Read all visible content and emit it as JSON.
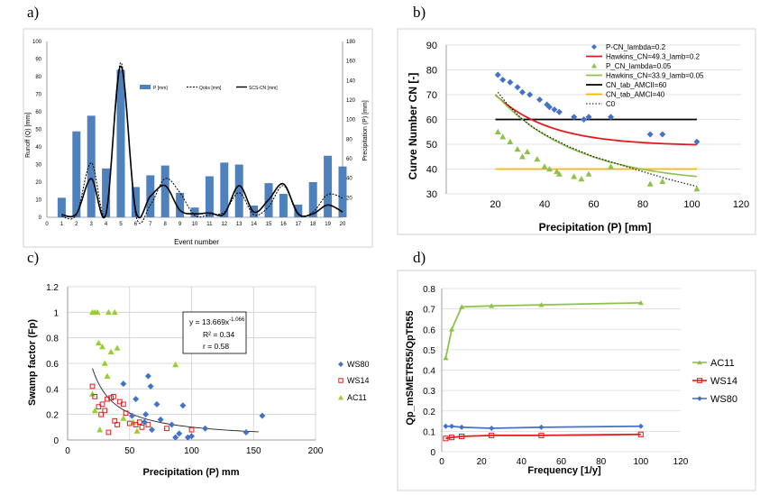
{
  "figure_labels": {
    "a": "a)",
    "b": "b)",
    "c": "c)",
    "d": "d)"
  },
  "colors": {
    "bar": "#4f81bd",
    "blue": "#4472c4",
    "red": "#e41a1c",
    "green": "#9acd32",
    "lightgreen": "#8bc34a",
    "orange": "#f5b800",
    "black": "#000000",
    "grid": "#d9d9d9"
  },
  "chart_data": [
    {
      "id": "a",
      "type": "bar",
      "xlabel": "Event number",
      "ylabel": "Runoff (Q) [mm]",
      "y2label": "Precipitation (P) [mm]",
      "ylim": [
        0,
        100
      ],
      "y2lim": [
        0,
        180
      ],
      "yticks": [
        0,
        10,
        20,
        30,
        40,
        50,
        60,
        70,
        80,
        90,
        100
      ],
      "y2ticks": [
        20,
        40,
        60,
        80,
        100,
        120,
        140,
        160,
        180
      ],
      "xticks": [
        0,
        1,
        2,
        3,
        4,
        5,
        6,
        7,
        8,
        9,
        10,
        11,
        12,
        13,
        14,
        15,
        16,
        17,
        18,
        19,
        20
      ],
      "legend": {
        "bar": "P [mm]",
        "qobs": "Qobs [mm]",
        "scs": "SCS-CN [mm]"
      },
      "precip": [
        20,
        88,
        104,
        50,
        151,
        31,
        43,
        53,
        25,
        10,
        42,
        56,
        54,
        12,
        35,
        24,
        13,
        36,
        63,
        52
      ],
      "qobs": [
        0.5,
        1.5,
        31,
        2,
        88,
        2,
        7,
        22,
        14,
        1,
        1.5,
        3,
        14,
        1.5,
        6,
        18,
        1.5,
        3,
        13,
        11
      ],
      "scs": [
        1.5,
        2,
        22,
        2,
        86,
        4,
        12,
        18,
        4,
        2,
        2.5,
        2,
        18,
        3,
        10,
        19,
        2,
        2,
        7,
        3
      ]
    },
    {
      "id": "b",
      "type": "scatter",
      "xlabel": "Precipitation (P) [mm]",
      "ylabel": "Curve Number CN [-]",
      "xlim": [
        0,
        120
      ],
      "ylim": [
        30,
        90
      ],
      "xticks": [
        20,
        40,
        60,
        80,
        100,
        120
      ],
      "yticks": [
        30,
        40,
        50,
        60,
        70,
        80,
        90
      ],
      "legend": [
        "P-CN_lambda=0.2",
        "Hawkins_CN=49.3_lamb=0.2",
        "P_CN_lambda=0.05",
        "Hawkins_CN=33.9_lamb=0.05",
        "CN_tab_AMCII=60",
        "CN_tab_AMCI=40",
        "C0"
      ],
      "series_diamond": [
        [
          21,
          78
        ],
        [
          23,
          76
        ],
        [
          26,
          75
        ],
        [
          29,
          73
        ],
        [
          31,
          71
        ],
        [
          34,
          70
        ],
        [
          38,
          68
        ],
        [
          41,
          66
        ],
        [
          42,
          65
        ],
        [
          44,
          64
        ],
        [
          46,
          63
        ],
        [
          52,
          61
        ],
        [
          56,
          60
        ],
        [
          58,
          61
        ],
        [
          67,
          61
        ],
        [
          83,
          54
        ],
        [
          88,
          54
        ],
        [
          102,
          51
        ]
      ],
      "series_triangle": [
        [
          21,
          55
        ],
        [
          23,
          53
        ],
        [
          26,
          51
        ],
        [
          29,
          48
        ],
        [
          31,
          45
        ],
        [
          33,
          47
        ],
        [
          37,
          44
        ],
        [
          40,
          41
        ],
        [
          42,
          40
        ],
        [
          45,
          39
        ],
        [
          46,
          38
        ],
        [
          52,
          37
        ],
        [
          55,
          36
        ],
        [
          58,
          38
        ],
        [
          67,
          41
        ],
        [
          83,
          34
        ],
        [
          88,
          35
        ],
        [
          102,
          32
        ]
      ],
      "hawkins_02": {
        "CN": 49.3,
        "lambda": 0.2
      },
      "hawkins_005": {
        "CN": 33.9,
        "lambda": 0.05
      },
      "cn_amcii": 60,
      "cn_amci": 40,
      "c0": [
        [
          21,
          71
        ],
        [
          25,
          66
        ],
        [
          30,
          61
        ],
        [
          35,
          57
        ],
        [
          40,
          54
        ],
        [
          50,
          49
        ],
        [
          60,
          45
        ],
        [
          70,
          42
        ],
        [
          80,
          39
        ],
        [
          90,
          36
        ],
        [
          102,
          33
        ]
      ]
    },
    {
      "id": "c",
      "type": "scatter",
      "xlabel": "Precipitation (P) mm",
      "ylabel": "Swamp factor (Fp)",
      "xlim": [
        0,
        200
      ],
      "ylim": [
        0,
        1.2
      ],
      "xticks": [
        0,
        50,
        100,
        150,
        200
      ],
      "yticks": [
        0,
        0.2,
        0.4,
        0.6,
        0.8,
        1,
        1.2
      ],
      "ytick_labels": [
        "0",
        "0.2",
        "0.4",
        "0.6",
        "0.8",
        "1",
        "1.2"
      ],
      "annotation": {
        "eq_prefix": "y = 13.669x",
        "eq_exp": "-1.066",
        "r2": "R² = 0.34",
        "r": "r = 0.58"
      },
      "legend": [
        "WS80",
        "WS14",
        "AC11"
      ],
      "fit": {
        "a": 13.669,
        "b": -1.066,
        "x_from": 20,
        "x_to": 155
      },
      "WS80": [
        [
          45,
          0.44
        ],
        [
          52,
          0.19
        ],
        [
          55,
          0.32
        ],
        [
          62,
          0.14
        ],
        [
          63,
          0.2
        ],
        [
          65,
          0.5
        ],
        [
          67,
          0.42
        ],
        [
          68,
          0.08
        ],
        [
          72,
          0.28
        ],
        [
          75,
          0.16
        ],
        [
          84,
          0.12
        ],
        [
          87,
          0.02
        ],
        [
          90,
          0.05
        ],
        [
          93,
          0.27
        ],
        [
          97,
          0.02
        ],
        [
          100,
          0.03
        ],
        [
          111,
          0.09
        ],
        [
          144,
          0.06
        ],
        [
          157,
          0.19
        ]
      ],
      "WS14": [
        [
          20,
          0.42
        ],
        [
          22,
          0.34
        ],
        [
          25,
          0.26
        ],
        [
          27,
          0.2
        ],
        [
          28,
          0.28
        ],
        [
          30,
          0.23
        ],
        [
          32,
          0.32
        ],
        [
          33,
          0.06
        ],
        [
          35,
          0.33
        ],
        [
          37,
          0.34
        ],
        [
          38,
          0.15
        ],
        [
          40,
          0.12
        ],
        [
          42,
          0.3
        ],
        [
          45,
          0.28
        ],
        [
          47,
          0.21
        ],
        [
          50,
          0.13
        ],
        [
          55,
          0.12
        ],
        [
          58,
          0.14
        ],
        [
          60,
          0.1
        ],
        [
          65,
          0.12
        ],
        [
          80,
          0.09
        ],
        [
          100,
          0.08
        ]
      ],
      "AC11": [
        [
          20,
          1.0
        ],
        [
          22,
          1.0
        ],
        [
          24,
          1.0
        ],
        [
          25,
          0.76
        ],
        [
          28,
          0.73
        ],
        [
          30,
          0.6
        ],
        [
          33,
          1.0
        ],
        [
          35,
          0.69
        ],
        [
          38,
          1.0
        ],
        [
          40,
          0.72
        ],
        [
          20,
          0.36
        ],
        [
          22,
          0.23
        ],
        [
          26,
          0.08
        ],
        [
          32,
          0.5
        ],
        [
          45,
          0.17
        ],
        [
          53,
          0.14
        ],
        [
          56,
          0.07
        ],
        [
          87,
          0.59
        ]
      ]
    },
    {
      "id": "d",
      "type": "line",
      "xlabel": "Frequency [1/y]",
      "ylabel": "Qp_mSMETR55/QpTR55",
      "xlim": [
        0,
        120
      ],
      "ylim": [
        0,
        0.8
      ],
      "xticks": [
        0,
        20,
        40,
        60,
        80,
        100,
        120
      ],
      "yticks": [
        0,
        0.1,
        0.2,
        0.3,
        0.4,
        0.5,
        0.6,
        0.7,
        0.8
      ],
      "x": [
        2,
        5,
        10,
        25,
        50,
        100
      ],
      "legend": [
        "AC11",
        "WS14",
        "WS80"
      ],
      "AC11": [
        0.46,
        0.6,
        0.71,
        0.715,
        0.72,
        0.73
      ],
      "WS14": [
        0.065,
        0.07,
        0.075,
        0.08,
        0.08,
        0.085
      ],
      "WS80": [
        0.125,
        0.125,
        0.12,
        0.115,
        0.12,
        0.125
      ]
    }
  ]
}
